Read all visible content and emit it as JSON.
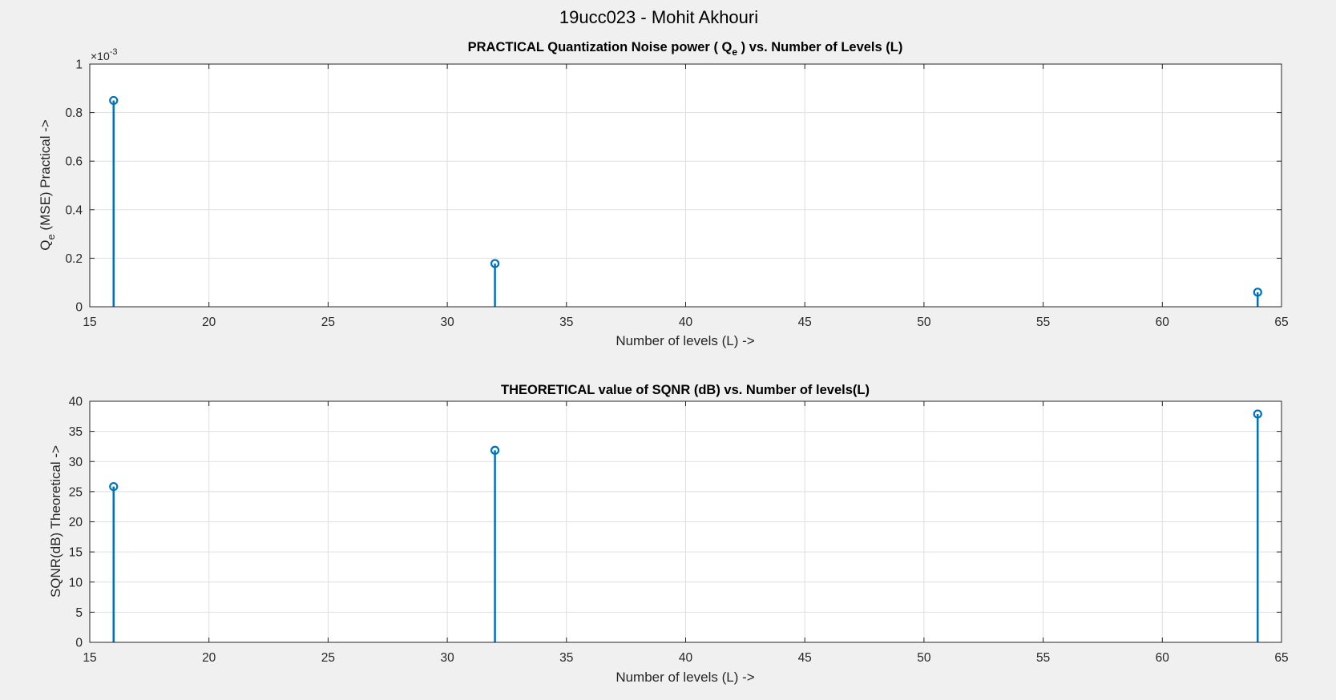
{
  "figure": {
    "title": "19ucc023 - Mohit Akhouri",
    "background": "#f0f0f0"
  },
  "chart_data": [
    {
      "type": "stem",
      "title_parts": [
        "PRACTICAL Quantization Noise power ( Q",
        "e",
        " ) vs. Number of Levels (L)"
      ],
      "xlabel": "Number of levels (L) ->",
      "ylabel_parts": [
        "Q",
        "e",
        " (MSE) Practical ->"
      ],
      "y_exponent_base": "×10",
      "y_exponent_power": "-3",
      "x": [
        16,
        32,
        64
      ],
      "y": [
        0.00085,
        0.000178,
        6e-05
      ],
      "xlim": [
        15,
        65
      ],
      "ylim": [
        0,
        0.001
      ],
      "xticks": [
        15,
        20,
        25,
        30,
        35,
        40,
        45,
        50,
        55,
        60,
        65
      ],
      "yticks": [
        0,
        0.0002,
        0.0004,
        0.0006,
        0.0008,
        0.001
      ],
      "ytick_labels": [
        "0",
        "0.2",
        "0.4",
        "0.6",
        "0.8",
        "1"
      ],
      "grid": true,
      "color": "#0072bd",
      "marker": "circle"
    },
    {
      "type": "stem",
      "title": "THEORETICAL value of SQNR (dB) vs. Number of levels(L)",
      "xlabel": "Number of levels (L) ->",
      "ylabel": "SQNR(dB) Theoretical ->",
      "x": [
        16,
        32,
        64
      ],
      "y": [
        25.84,
        31.86,
        37.88
      ],
      "xlim": [
        15,
        65
      ],
      "ylim": [
        0,
        40
      ],
      "xticks": [
        15,
        20,
        25,
        30,
        35,
        40,
        45,
        50,
        55,
        60,
        65
      ],
      "yticks": [
        0,
        5,
        10,
        15,
        20,
        25,
        30,
        35,
        40
      ],
      "ytick_labels": [
        "0",
        "5",
        "10",
        "15",
        "20",
        "25",
        "30",
        "35",
        "40"
      ],
      "grid": true,
      "color": "#0072bd",
      "marker": "circle"
    }
  ]
}
